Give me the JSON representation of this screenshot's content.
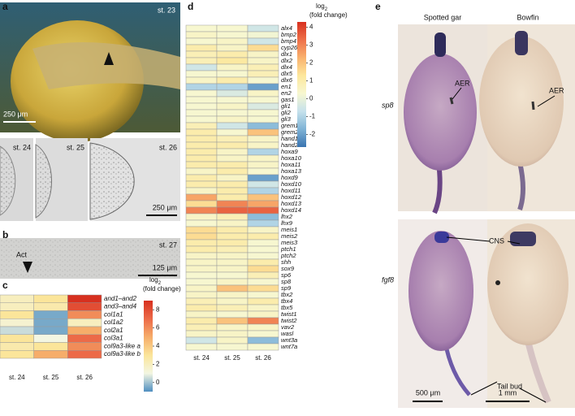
{
  "panel_letters": [
    "a",
    "b",
    "c",
    "d",
    "e"
  ],
  "panel_a": {
    "stage": "st. 23",
    "scale_bar": "250 μm",
    "stages": [
      "st. 24",
      "st. 25",
      "st. 26"
    ],
    "scale_bar_2": "250 μm"
  },
  "panel_b": {
    "stage": "st. 27",
    "marker": "Act",
    "scale_bar": "125 μm"
  },
  "panel_e": {
    "columns": [
      "Spotted gar",
      "Bowfin"
    ],
    "genes": [
      "sp8",
      "fgf8"
    ],
    "annotations": [
      "AER",
      "AER",
      "CNS",
      "Tail bud"
    ],
    "scale_bars": [
      "500 μm",
      "1 mm"
    ]
  },
  "chart_data": [
    {
      "type": "heatmap",
      "x": [
        "st. 24",
        "st. 25",
        "st. 26"
      ],
      "y": [
        "and1–and2",
        "and3–and4",
        "col1a1",
        "col1a2",
        "col2a1",
        "col3a1",
        "col9a3-like a",
        "col9a3-like b"
      ],
      "values": [
        [
          2,
          3,
          9
        ],
        [
          2,
          2.5,
          8
        ],
        [
          3,
          -0.5,
          6
        ],
        [
          1.5,
          -0.5,
          2
        ],
        [
          0.5,
          -0.5,
          5
        ],
        [
          3,
          1,
          7
        ],
        [
          2.5,
          3,
          6
        ],
        [
          3,
          5,
          7
        ]
      ],
      "colorbar_label": {
        "base": "log",
        "sub": "2",
        "rest": "(fold change)"
      },
      "clim": [
        -1,
        9
      ],
      "cticks": [
        0,
        2,
        4,
        6,
        8
      ],
      "colormap": [
        "#4f8fc0",
        "#f3f6e2",
        "#fbe59a",
        "#f6ad6a",
        "#ec6a48",
        "#d7301f"
      ]
    },
    {
      "type": "heatmap",
      "x": [
        "st. 24",
        "st. 25",
        "st. 26"
      ],
      "y": [
        "alx4",
        "bmp2",
        "bmp4",
        "cyp26b1",
        "dlx1",
        "dlx2",
        "dlx4",
        "dlx5",
        "dlx6",
        "en1",
        "en2",
        "gas1",
        "gli1",
        "gli2",
        "gli3",
        "grem1",
        "grem2",
        "hand1",
        "hand2",
        "hoxa9",
        "hoxa10",
        "hoxa11",
        "hoxa13",
        "hoxd9",
        "hoxd10",
        "hoxd11",
        "hoxd12",
        "hoxd13",
        "hoxd14",
        "lhx2",
        "lhx9",
        "meis1",
        "meis2",
        "meis3",
        "ptch1",
        "ptch2",
        "shh",
        "sox9",
        "sp6",
        "sp8",
        "sp9",
        "tbx2",
        "tbx4",
        "tbx5",
        "twist1",
        "twist2",
        "vav2",
        "wasl",
        "wnt3a",
        "wnt7a"
      ],
      "values": [
        [
          0.3,
          0.3,
          -0.5
        ],
        [
          0.5,
          0.3,
          0.2
        ],
        [
          0.3,
          0.5,
          -0.5
        ],
        [
          1,
          0.5,
          1.5
        ],
        [
          0.8,
          1,
          0.5
        ],
        [
          0.8,
          1.2,
          0.5
        ],
        [
          -0.5,
          0.5,
          0.8
        ],
        [
          0.3,
          0.3,
          0.8
        ],
        [
          0.5,
          1,
          0.3
        ],
        [
          -1,
          -1,
          -2
        ],
        [
          0.3,
          -0.3,
          0.5
        ],
        [
          0.3,
          0.3,
          0.3
        ],
        [
          0.3,
          0.5,
          -0.3
        ],
        [
          0.3,
          0.3,
          0.3
        ],
        [
          0.3,
          0.5,
          0.3
        ],
        [
          0.8,
          -0.5,
          -1.5
        ],
        [
          1,
          0.3,
          2
        ],
        [
          1,
          0.8,
          0.5
        ],
        [
          1,
          1,
          0.5
        ],
        [
          1,
          0.5,
          -1
        ],
        [
          1,
          0.5,
          0.5
        ],
        [
          1,
          1,
          0.5
        ],
        [
          0.5,
          1,
          0.3
        ],
        [
          1,
          0.5,
          -2
        ],
        [
          1,
          1,
          -0.5
        ],
        [
          0.5,
          1,
          -1
        ],
        [
          2.5,
          1,
          2
        ],
        [
          1.5,
          3,
          2.5
        ],
        [
          3,
          3.5,
          3.5
        ],
        [
          0.5,
          0.8,
          -1.5
        ],
        [
          0.3,
          0.5,
          -1
        ],
        [
          1.5,
          1,
          0.5
        ],
        [
          1.5,
          1,
          1
        ],
        [
          1,
          1,
          0.3
        ],
        [
          1,
          0.8,
          0.3
        ],
        [
          0.5,
          0.5,
          0.3
        ],
        [
          0.5,
          0.5,
          1
        ],
        [
          0.5,
          0.5,
          1.5
        ],
        [
          0.3,
          0.3,
          0.8
        ],
        [
          0.3,
          0.5,
          0.3
        ],
        [
          0.5,
          2,
          1.5
        ],
        [
          0.5,
          0.5,
          0.3
        ],
        [
          0.8,
          0.5,
          1
        ],
        [
          1,
          0.8,
          0.5
        ],
        [
          0.5,
          0.3,
          0.5
        ],
        [
          1,
          2,
          3
        ],
        [
          0.8,
          0.5,
          0.5
        ],
        [
          0.5,
          0.5,
          0.3
        ],
        [
          -0.5,
          0.5,
          -1.5
        ],
        [
          0.3,
          0.3,
          0.3
        ]
      ],
      "colorbar_label": {
        "base": "log",
        "sub": "2",
        "rest": "(fold change)"
      },
      "clim": [
        -2.7,
        4.3
      ],
      "cticks": [
        -2,
        -1,
        0,
        1,
        2,
        3,
        4
      ],
      "colormap": [
        "#3a74b0",
        "#7fb3d6",
        "#c6e2ec",
        "#f7f7d0",
        "#fde79c",
        "#f9b26e",
        "#ee7049",
        "#d7301f"
      ]
    }
  ]
}
